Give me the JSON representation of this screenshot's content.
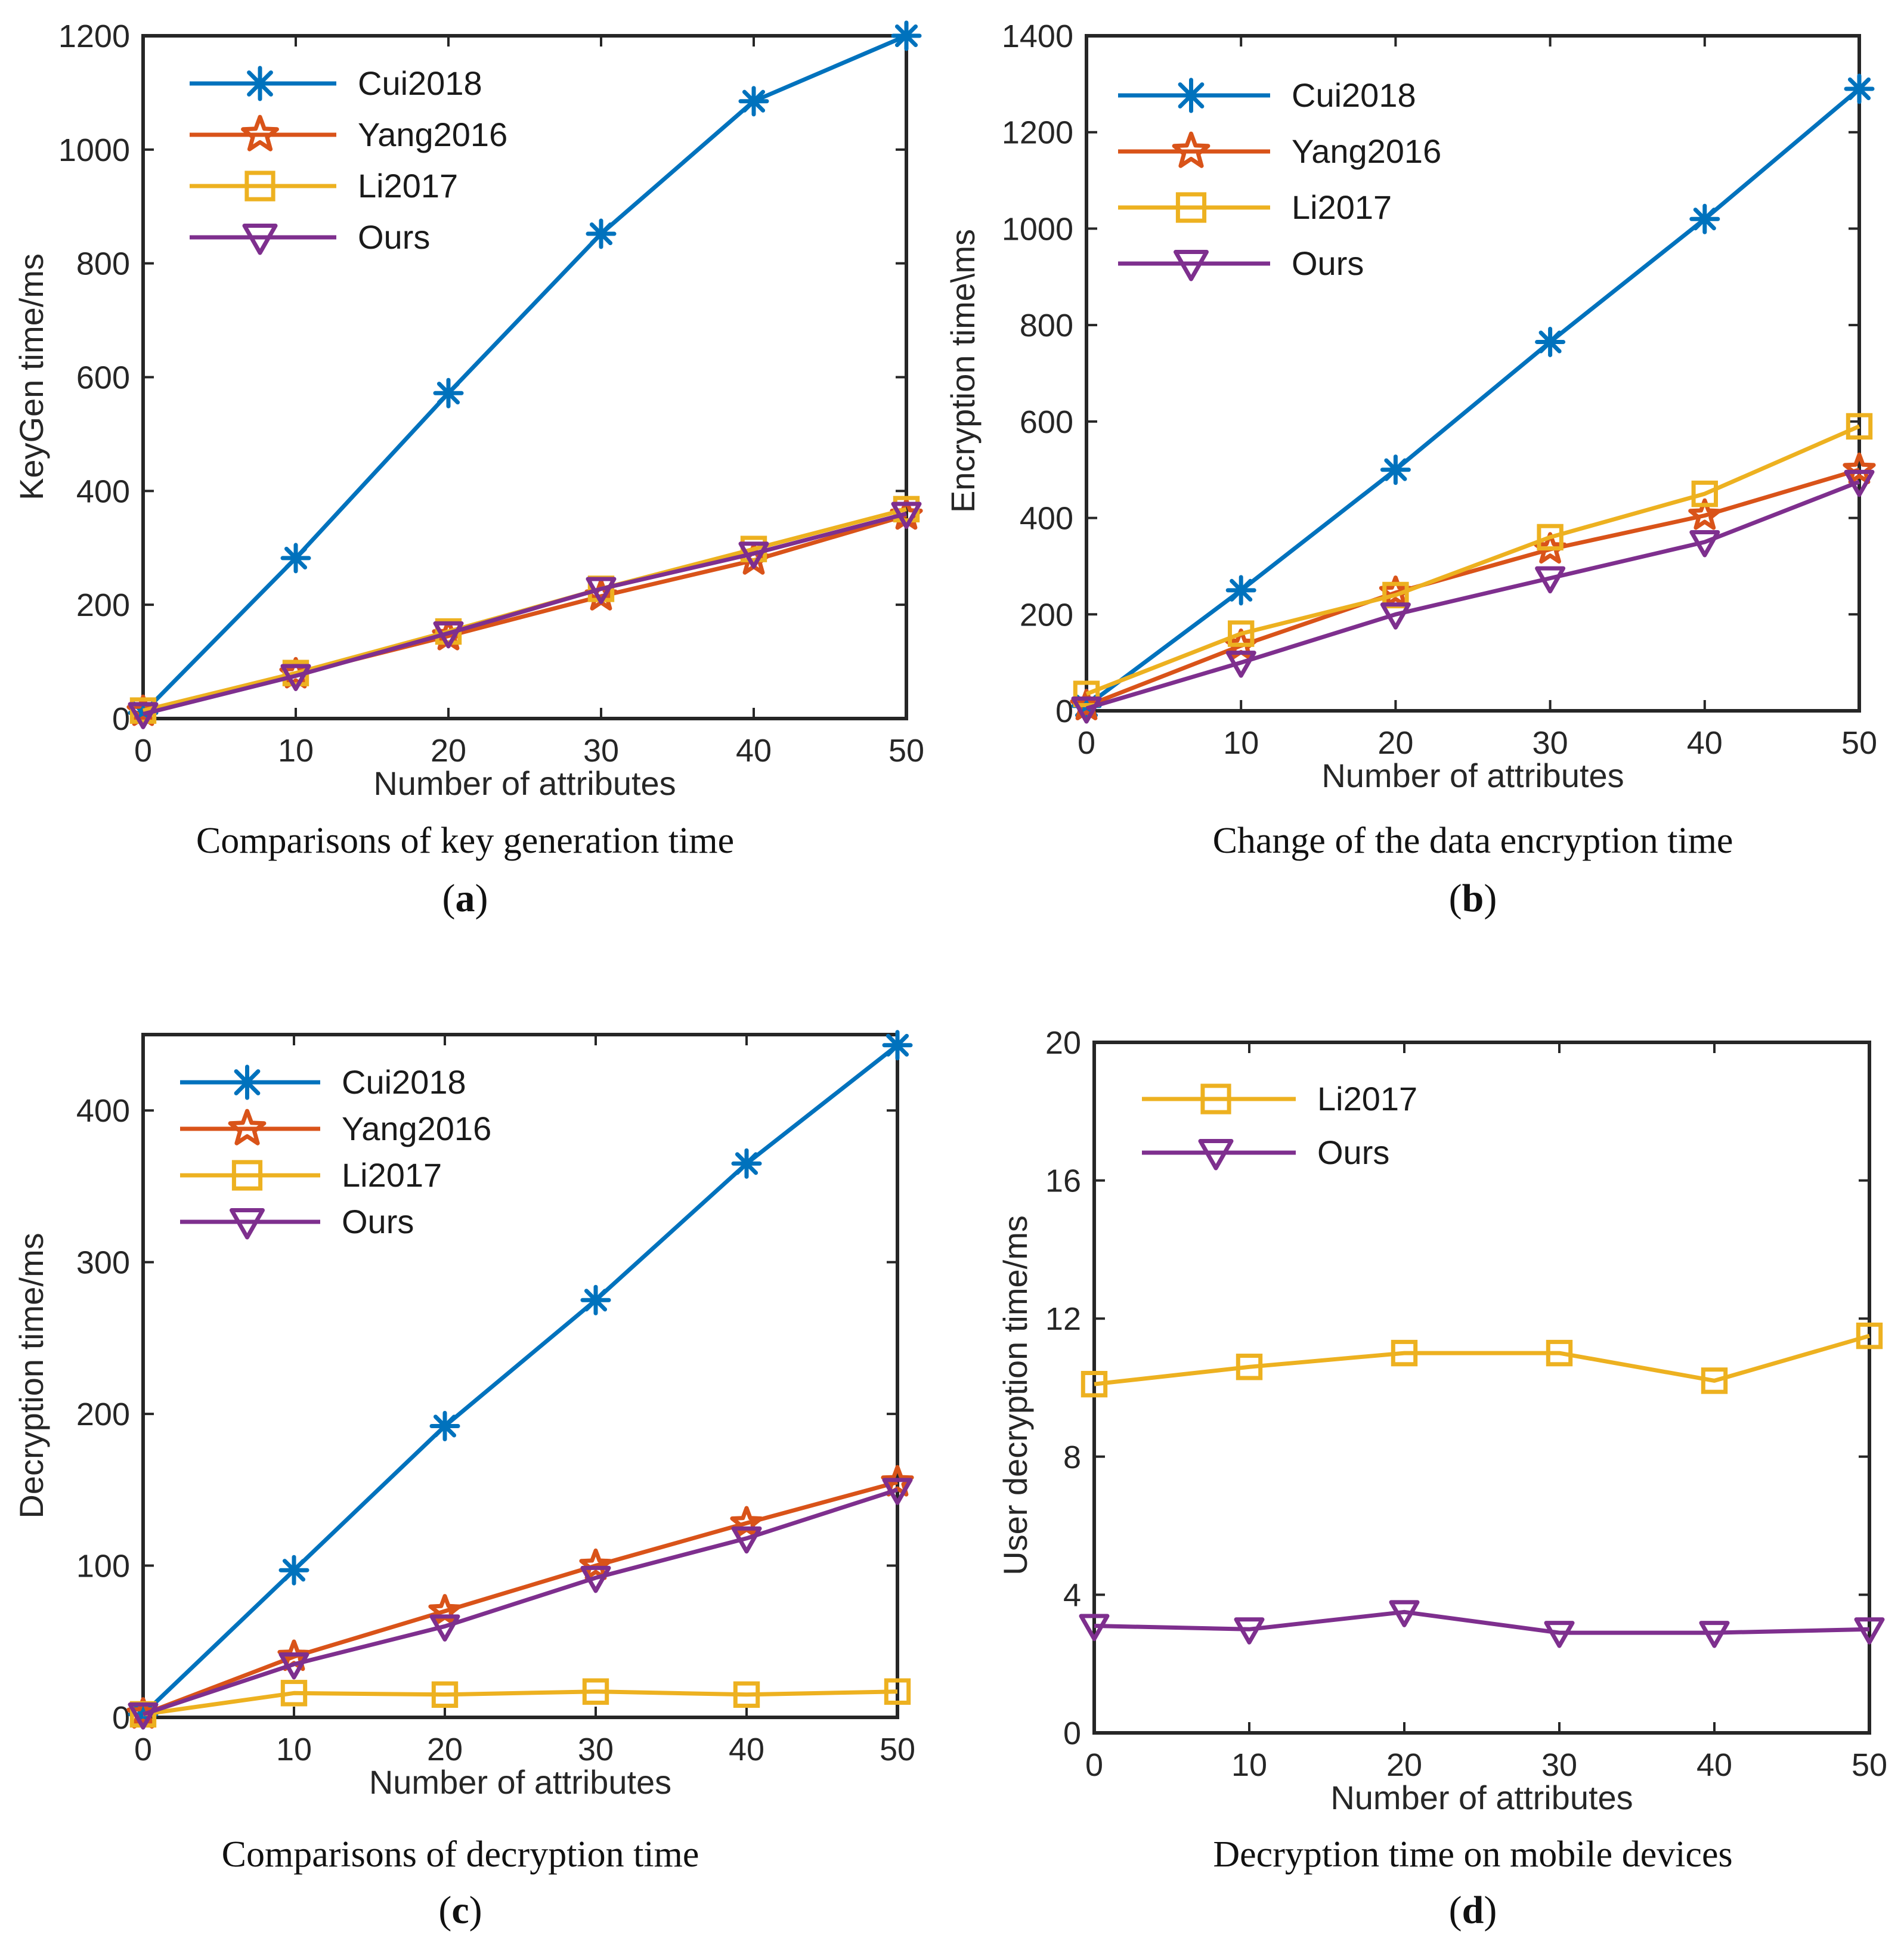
{
  "colors": {
    "Cui2018": "#0072BD",
    "Yang2016": "#D95319",
    "Li2017": "#EDB120",
    "Ours": "#7E2F8E",
    "axis": "#262626"
  },
  "markers": {
    "Cui2018": "asterisk",
    "Yang2016": "pentagram",
    "Li2017": "square",
    "Ours": "triangle-down"
  },
  "chart_data": [
    {
      "type": "line",
      "panel": "a",
      "caption": "Comparisons of key generation time",
      "label": "a",
      "xlabel": "Number of attributes",
      "ylabel": "KeyGen time/ms",
      "x": [
        0,
        10,
        20,
        30,
        40,
        50
      ],
      "xlim": [
        0,
        50
      ],
      "ylim": [
        0,
        1200
      ],
      "xticks": [
        "0",
        "10",
        "20",
        "30",
        "40",
        "50"
      ],
      "yticks": [
        "0",
        "200",
        "400",
        "600",
        "800",
        "1000",
        "1200"
      ],
      "legend_location": "top-left",
      "series": [
        {
          "name": "Cui2018",
          "values": [
            10,
            282,
            572,
            852,
            1085,
            1200
          ]
        },
        {
          "name": "Yang2016",
          "values": [
            12,
            78,
            145,
            215,
            278,
            357
          ]
        },
        {
          "name": "Li2017",
          "values": [
            14,
            80,
            153,
            228,
            298,
            368
          ]
        },
        {
          "name": "Ours",
          "values": [
            8,
            75,
            150,
            228,
            290,
            360
          ]
        }
      ]
    },
    {
      "type": "line",
      "panel": "b",
      "caption": "Change of the data encryption time",
      "label": "b",
      "xlabel": "Number of attributes",
      "ylabel": "Encryption time\\ms",
      "x": [
        0,
        10,
        20,
        30,
        40,
        50
      ],
      "xlim": [
        0,
        50
      ],
      "ylim": [
        0,
        1400
      ],
      "xticks": [
        "0",
        "10",
        "20",
        "30",
        "40",
        "50"
      ],
      "yticks": [
        "0",
        "200",
        "400",
        "600",
        "800",
        "1000",
        "1200",
        "1400"
      ],
      "legend_location": "top-left",
      "series": [
        {
          "name": "Cui2018",
          "values": [
            10,
            250,
            500,
            765,
            1020,
            1290
          ]
        },
        {
          "name": "Yang2016",
          "values": [
            10,
            135,
            245,
            335,
            405,
            500
          ]
        },
        {
          "name": "Li2017",
          "values": [
            35,
            160,
            240,
            360,
            450,
            590
          ]
        },
        {
          "name": "Ours",
          "values": [
            5,
            100,
            200,
            275,
            350,
            475
          ]
        }
      ]
    },
    {
      "type": "line",
      "panel": "c",
      "caption": "Comparisons of decryption time",
      "label": "c",
      "xlabel": "Number of attributes",
      "ylabel": "Decryption time/ms",
      "x": [
        0,
        10,
        20,
        30,
        40,
        50
      ],
      "xlim": [
        0,
        50
      ],
      "ylim": [
        0,
        450
      ],
      "xticks": [
        "0",
        "10",
        "20",
        "30",
        "40",
        "50"
      ],
      "yticks": [
        "0",
        "100",
        "200",
        "300",
        "400"
      ],
      "legend_location": "top-left",
      "series": [
        {
          "name": "Cui2018",
          "values": [
            2,
            97,
            192,
            275,
            365,
            443
          ]
        },
        {
          "name": "Yang2016",
          "values": [
            2,
            40,
            70,
            100,
            128,
            155
          ]
        },
        {
          "name": "Li2017",
          "values": [
            2,
            16,
            15,
            17,
            15,
            17
          ]
        },
        {
          "name": "Ours",
          "values": [
            2,
            35,
            60,
            92,
            118,
            150
          ]
        }
      ]
    },
    {
      "type": "line",
      "panel": "d",
      "caption": "Decryption time on mobile devices",
      "label": "d",
      "xlabel": "Number of attributes",
      "ylabel": "User decryption time/ms",
      "x": [
        0,
        10,
        20,
        30,
        40,
        50
      ],
      "xlim": [
        0,
        50
      ],
      "ylim": [
        0,
        20
      ],
      "xticks": [
        "0",
        "10",
        "20",
        "30",
        "40",
        "50"
      ],
      "yticks": [
        "0",
        "4",
        "8",
        "12",
        "16",
        "20"
      ],
      "legend_location": "top-left",
      "series": [
        {
          "name": "Li2017",
          "values": [
            10.1,
            10.6,
            11.0,
            11.0,
            10.2,
            11.5
          ]
        },
        {
          "name": "Ours",
          "values": [
            3.1,
            3.0,
            3.5,
            2.9,
            2.9,
            3.0
          ]
        }
      ]
    }
  ]
}
